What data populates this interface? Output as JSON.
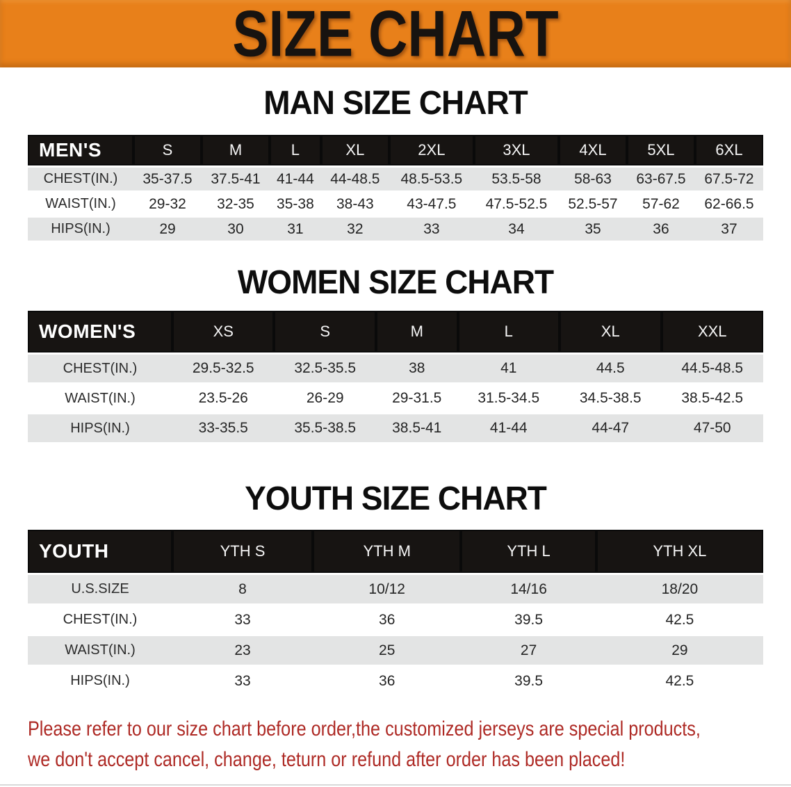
{
  "banner": {
    "title": "SIZE CHART"
  },
  "sections": [
    {
      "title": "MAN SIZE CHART",
      "table": {
        "header": [
          "MEN'S",
          "S",
          "M",
          "L",
          "XL",
          "2XL",
          "3XL",
          "4XL",
          "5XL",
          "6XL"
        ],
        "rows": [
          [
            "CHEST(IN.)",
            "35-37.5",
            "37.5-41",
            "41-44",
            "44-48.5",
            "48.5-53.5",
            "53.5-58",
            "58-63",
            "63-67.5",
            "67.5-72"
          ],
          [
            "WAIST(IN.)",
            "29-32",
            "32-35",
            "35-38",
            "38-43",
            "43-47.5",
            "47.5-52.5",
            "52.5-57",
            "57-62",
            "62-66.5"
          ],
          [
            "HIPS(IN.)",
            "29",
            "30",
            "31",
            "32",
            "33",
            "34",
            "35",
            "36",
            "37"
          ]
        ]
      }
    },
    {
      "title": "WOMEN SIZE CHART",
      "table": {
        "header": [
          "WOMEN'S",
          "XS",
          "S",
          "M",
          "L",
          "XL",
          "XXL"
        ],
        "rows": [
          [
            "CHEST(IN.)",
            "29.5-32.5",
            "32.5-35.5",
            "38",
            "41",
            "44.5",
            "44.5-48.5"
          ],
          [
            "WAIST(IN.)",
            "23.5-26",
            "26-29",
            "29-31.5",
            "31.5-34.5",
            "34.5-38.5",
            "38.5-42.5"
          ],
          [
            "HIPS(IN.)",
            "33-35.5",
            "35.5-38.5",
            "38.5-41",
            "41-44",
            "44-47",
            "47-50"
          ]
        ]
      }
    },
    {
      "title": "YOUTH SIZE CHART",
      "table": {
        "header": [
          "YOUTH",
          "YTH S",
          "YTH M",
          "YTH L",
          "YTH XL"
        ],
        "rows": [
          [
            "U.S.SIZE",
            "8",
            "10/12",
            "14/16",
            "18/20"
          ],
          [
            "CHEST(IN.)",
            "33",
            "36",
            "39.5",
            "42.5"
          ],
          [
            "WAIST(IN.)",
            "23",
            "25",
            "27",
            "29"
          ],
          [
            "HIPS(IN.)",
            "33",
            "36",
            "39.5",
            "42.5"
          ]
        ]
      }
    }
  ],
  "disclaimer": {
    "line1": "Please refer to our size chart before order,the customized jerseys are special products,",
    "line2": "we don't accept cancel, change, teturn or refund after order has been placed!"
  },
  "colors": {
    "banner_orange": "#E8801A",
    "banner_text": "#171310",
    "table_header_black": "#171412",
    "table_row_gray": "#E3E4E4",
    "table_row_white": "#FFFFFF",
    "disclaimer_red": "#AE2A25"
  }
}
